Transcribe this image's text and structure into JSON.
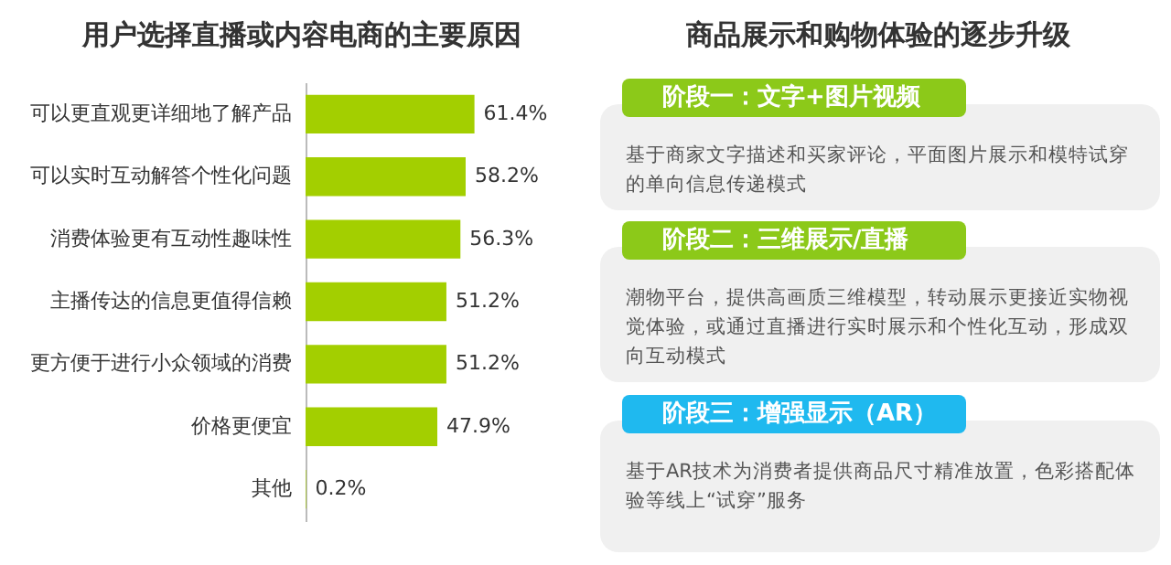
{
  "chart_data": [
    {
      "type": "bar",
      "orientation": "horizontal",
      "title": "用户选择直播或内容电商的主要原因",
      "categories": [
        "可以更直观更详细地了解产品",
        "可以实时互动解答个性化问题",
        "消费体验更有互动性趣味性",
        "主播传达的信息更值得信赖",
        "更方便于进行小众领域的消费",
        "价格更便宜",
        "其他"
      ],
      "values": [
        61.4,
        58.2,
        56.3,
        51.2,
        51.2,
        47.9,
        0.2
      ],
      "value_labels": [
        "61.4%",
        "58.2%",
        "56.3%",
        "51.2%",
        "51.2%",
        "47.9%",
        "0.2%"
      ],
      "color": "#a3cf00"
    },
    {
      "type": "other",
      "title": "商品展示和购物体验的逐步升级",
      "annotations": [
        "阶段一：文字+图片视频",
        "基于商家文字描述和买家评论，平面图片展示和模特试穿的单向信息传递模式",
        "阶段二：三维展示/直播",
        "潮物平台，提供高画质三维模型，转动展示更接近实物视觉体验，或通过直播进行实时展示和个性化互动，形成双向互动模式",
        "阶段三：增强显示（AR）",
        "基于AR技术为消费者提供商品尺寸精准放置，色彩搭配体验等线上“试穿”服务"
      ]
    }
  ]
}
